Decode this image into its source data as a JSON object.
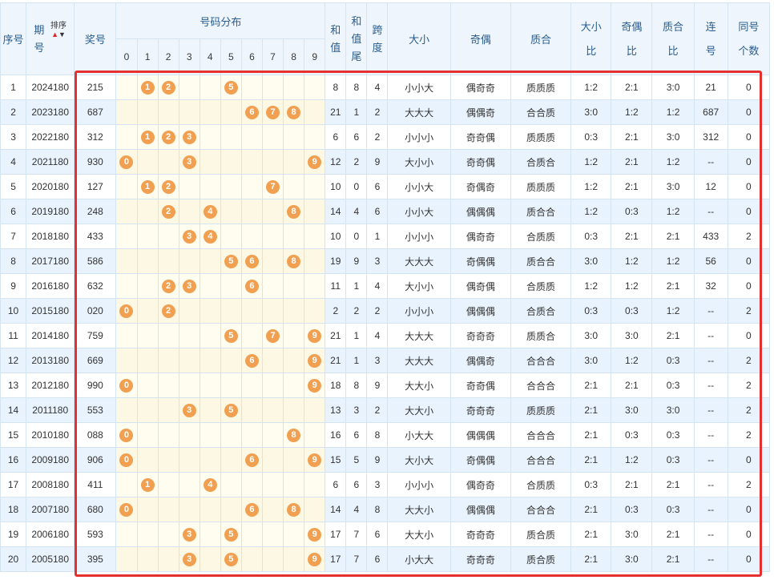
{
  "header": {
    "seq": "序号",
    "period_1": "期",
    "period_2": "号",
    "sort_label": "排序",
    "prize": "奖号",
    "distribution": "号码分布",
    "digits": [
      "0",
      "1",
      "2",
      "3",
      "4",
      "5",
      "6",
      "7",
      "8",
      "9"
    ],
    "sum_1": "和",
    "sum_2": "值",
    "sumtail_1": "和",
    "sumtail_2": "值",
    "sumtail_3": "尾",
    "span_1": "跨",
    "span_2": "度",
    "size": "大小",
    "parity": "奇偶",
    "prime": "质合",
    "size_ratio_1": "大小",
    "size_ratio_2": "比",
    "parity_ratio_1": "奇偶",
    "parity_ratio_2": "比",
    "prime_ratio_1": "质合",
    "prime_ratio_2": "比",
    "consec_1": "连",
    "consec_2": "号",
    "same_1": "同号",
    "same_2": "个数"
  },
  "rows": [
    {
      "seq": "1",
      "period": "2024180",
      "prize": "215",
      "sum": "8",
      "tail": "8",
      "span": "4",
      "size": "小小大",
      "parity": "偶奇奇",
      "prime": "质质质",
      "sr": "1:2",
      "pr": "2:1",
      "qr": "3:0",
      "consec": "21",
      "same": "0"
    },
    {
      "seq": "2",
      "period": "2023180",
      "prize": "687",
      "sum": "21",
      "tail": "1",
      "span": "2",
      "size": "大大大",
      "parity": "偶偶奇",
      "prime": "合合质",
      "sr": "3:0",
      "pr": "1:2",
      "qr": "1:2",
      "consec": "687",
      "same": "0"
    },
    {
      "seq": "3",
      "period": "2022180",
      "prize": "312",
      "sum": "6",
      "tail": "6",
      "span": "2",
      "size": "小小小",
      "parity": "奇奇偶",
      "prime": "质质质",
      "sr": "0:3",
      "pr": "2:1",
      "qr": "3:0",
      "consec": "312",
      "same": "0"
    },
    {
      "seq": "4",
      "period": "2021180",
      "prize": "930",
      "sum": "12",
      "tail": "2",
      "span": "9",
      "size": "大小小",
      "parity": "奇奇偶",
      "prime": "合质合",
      "sr": "1:2",
      "pr": "2:1",
      "qr": "1:2",
      "consec": "--",
      "same": "0"
    },
    {
      "seq": "5",
      "period": "2020180",
      "prize": "127",
      "sum": "10",
      "tail": "0",
      "span": "6",
      "size": "小小大",
      "parity": "奇偶奇",
      "prime": "质质质",
      "sr": "1:2",
      "pr": "2:1",
      "qr": "3:0",
      "consec": "12",
      "same": "0"
    },
    {
      "seq": "6",
      "period": "2019180",
      "prize": "248",
      "sum": "14",
      "tail": "4",
      "span": "6",
      "size": "小小大",
      "parity": "偶偶偶",
      "prime": "质合合",
      "sr": "1:2",
      "pr": "0:3",
      "qr": "1:2",
      "consec": "--",
      "same": "0"
    },
    {
      "seq": "7",
      "period": "2018180",
      "prize": "433",
      "sum": "10",
      "tail": "0",
      "span": "1",
      "size": "小小小",
      "parity": "偶奇奇",
      "prime": "合质质",
      "sr": "0:3",
      "pr": "2:1",
      "qr": "2:1",
      "consec": "433",
      "same": "2"
    },
    {
      "seq": "8",
      "period": "2017180",
      "prize": "586",
      "sum": "19",
      "tail": "9",
      "span": "3",
      "size": "大大大",
      "parity": "奇偶偶",
      "prime": "质合合",
      "sr": "3:0",
      "pr": "1:2",
      "qr": "1:2",
      "consec": "56",
      "same": "0"
    },
    {
      "seq": "9",
      "period": "2016180",
      "prize": "632",
      "sum": "11",
      "tail": "1",
      "span": "4",
      "size": "大小小",
      "parity": "偶奇偶",
      "prime": "合质质",
      "sr": "1:2",
      "pr": "1:2",
      "qr": "2:1",
      "consec": "32",
      "same": "0"
    },
    {
      "seq": "10",
      "period": "2015180",
      "prize": "020",
      "sum": "2",
      "tail": "2",
      "span": "2",
      "size": "小小小",
      "parity": "偶偶偶",
      "prime": "合质合",
      "sr": "0:3",
      "pr": "0:3",
      "qr": "1:2",
      "consec": "--",
      "same": "2"
    },
    {
      "seq": "11",
      "period": "2014180",
      "prize": "759",
      "sum": "21",
      "tail": "1",
      "span": "4",
      "size": "大大大",
      "parity": "奇奇奇",
      "prime": "质质合",
      "sr": "3:0",
      "pr": "3:0",
      "qr": "2:1",
      "consec": "--",
      "same": "0"
    },
    {
      "seq": "12",
      "period": "2013180",
      "prize": "669",
      "sum": "21",
      "tail": "1",
      "span": "3",
      "size": "大大大",
      "parity": "偶偶奇",
      "prime": "合合合",
      "sr": "3:0",
      "pr": "1:2",
      "qr": "0:3",
      "consec": "--",
      "same": "2"
    },
    {
      "seq": "13",
      "period": "2012180",
      "prize": "990",
      "sum": "18",
      "tail": "8",
      "span": "9",
      "size": "大大小",
      "parity": "奇奇偶",
      "prime": "合合合",
      "sr": "2:1",
      "pr": "2:1",
      "qr": "0:3",
      "consec": "--",
      "same": "2"
    },
    {
      "seq": "14",
      "period": "2011180",
      "prize": "553",
      "sum": "13",
      "tail": "3",
      "span": "2",
      "size": "大大小",
      "parity": "奇奇奇",
      "prime": "质质质",
      "sr": "2:1",
      "pr": "3:0",
      "qr": "3:0",
      "consec": "--",
      "same": "2"
    },
    {
      "seq": "15",
      "period": "2010180",
      "prize": "088",
      "sum": "16",
      "tail": "6",
      "span": "8",
      "size": "小大大",
      "parity": "偶偶偶",
      "prime": "合合合",
      "sr": "2:1",
      "pr": "0:3",
      "qr": "0:3",
      "consec": "--",
      "same": "2"
    },
    {
      "seq": "16",
      "period": "2009180",
      "prize": "906",
      "sum": "15",
      "tail": "5",
      "span": "9",
      "size": "大小大",
      "parity": "奇偶偶",
      "prime": "合合合",
      "sr": "2:1",
      "pr": "1:2",
      "qr": "0:3",
      "consec": "--",
      "same": "0"
    },
    {
      "seq": "17",
      "period": "2008180",
      "prize": "411",
      "sum": "6",
      "tail": "6",
      "span": "3",
      "size": "小小小",
      "parity": "偶奇奇",
      "prime": "合质质",
      "sr": "0:3",
      "pr": "2:1",
      "qr": "2:1",
      "consec": "--",
      "same": "2"
    },
    {
      "seq": "18",
      "period": "2007180",
      "prize": "680",
      "sum": "14",
      "tail": "4",
      "span": "8",
      "size": "大大小",
      "parity": "偶偶偶",
      "prime": "合合合",
      "sr": "2:1",
      "pr": "0:3",
      "qr": "0:3",
      "consec": "--",
      "same": "0"
    },
    {
      "seq": "19",
      "period": "2006180",
      "prize": "593",
      "sum": "17",
      "tail": "7",
      "span": "6",
      "size": "大大小",
      "parity": "奇奇奇",
      "prime": "质合质",
      "sr": "2:1",
      "pr": "3:0",
      "qr": "2:1",
      "consec": "--",
      "same": "0"
    },
    {
      "seq": "20",
      "period": "2005180",
      "prize": "395",
      "sum": "17",
      "tail": "7",
      "span": "6",
      "size": "小大大",
      "parity": "奇奇奇",
      "prime": "质合质",
      "sr": "2:1",
      "pr": "3:0",
      "qr": "2:1",
      "consec": "--",
      "same": "0"
    }
  ],
  "colors": {
    "ball": "#f0a050",
    "highlight_border": "#e53030",
    "header_text": "#2a5d8f"
  }
}
